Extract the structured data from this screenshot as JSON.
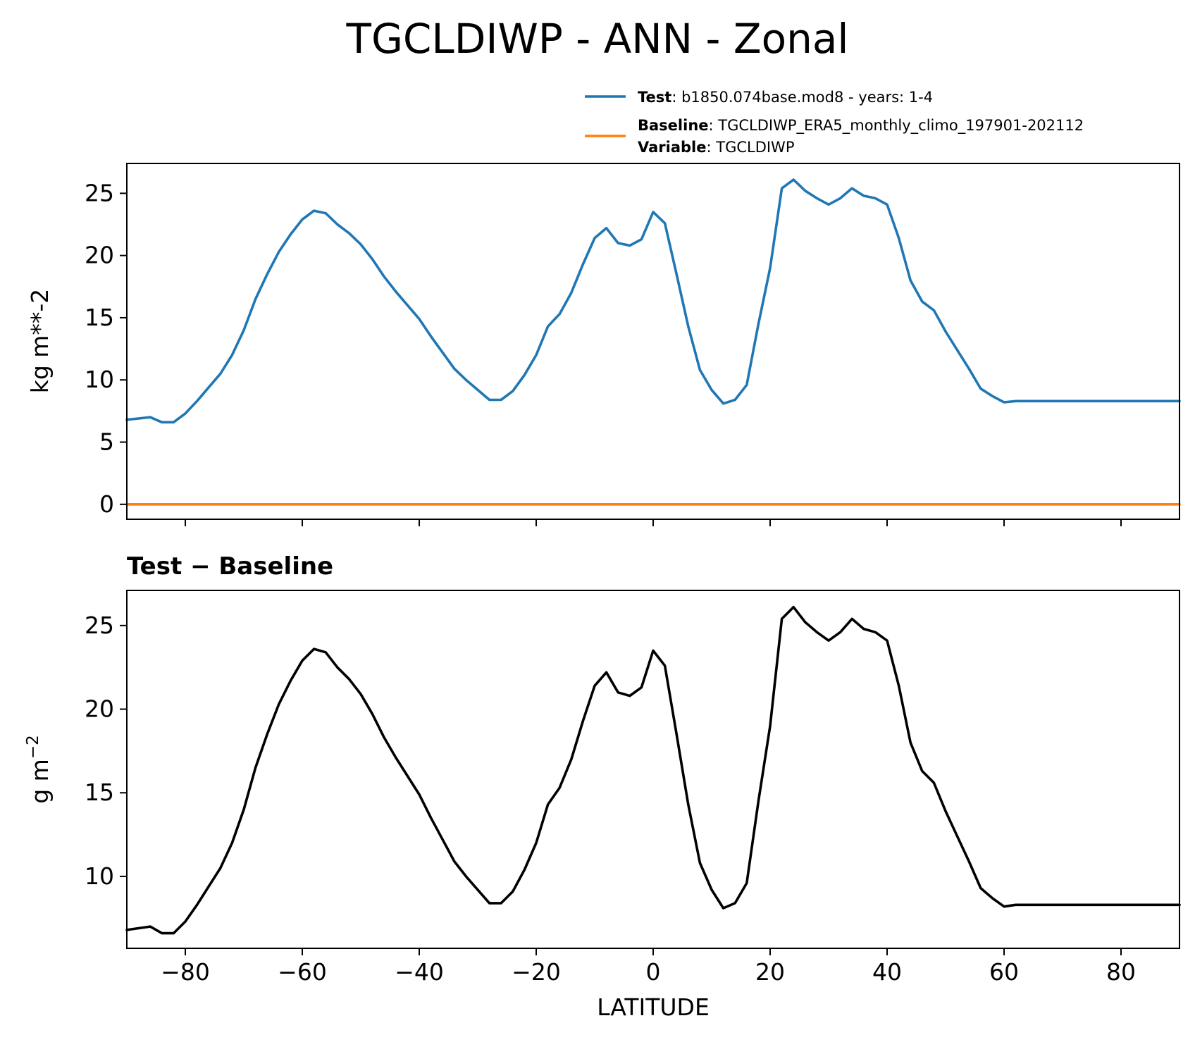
{
  "chart_data": [
    {
      "type": "line",
      "title": "TGCLDIWP - ANN - Zonal",
      "xlabel": "",
      "ylabel": "kg m**-2",
      "xlim": [
        -90,
        90
      ],
      "ylim": [
        -1.2,
        27.4
      ],
      "yticks": [
        0,
        5,
        10,
        15,
        20,
        25
      ],
      "xticks": [
        -80,
        -60,
        -40,
        -20,
        0,
        20,
        40,
        60,
        80
      ],
      "x_tick_labels_shown": false,
      "grid": false,
      "legend": {
        "position": "top-right, above plot",
        "entries": [
          {
            "series": "test",
            "lines": [
              {
                "bold": "Test",
                "text": ": b1850.074base.mod8 - years: 1-4"
              }
            ]
          },
          {
            "series": "baseline",
            "lines": [
              {
                "bold": "Baseline",
                "text": ": TGCLDIWP_ERA5_monthly_climo_197901-202112"
              },
              {
                "bold": "Variable",
                "text": ": TGCLDIWP"
              }
            ]
          }
        ]
      },
      "series": [
        {
          "id": "test",
          "color": "#1f77b4",
          "x": [
            -90,
            -88,
            -86,
            -84,
            -82,
            -80,
            -78,
            -76,
            -74,
            -72,
            -70,
            -68,
            -66,
            -64,
            -62,
            -60,
            -58,
            -56,
            -54,
            -52,
            -50,
            -48,
            -46,
            -44,
            -42,
            -40,
            -38,
            -36,
            -34,
            -32,
            -30,
            -28,
            -26,
            -24,
            -22,
            -20,
            -18,
            -16,
            -14,
            -12,
            -10,
            -8,
            -6,
            -4,
            -2,
            0,
            2,
            4,
            6,
            8,
            10,
            12,
            14,
            16,
            18,
            20,
            22,
            24,
            26,
            28,
            30,
            32,
            34,
            36,
            38,
            40,
            42,
            44,
            46,
            48,
            50,
            52,
            54,
            56,
            58,
            60,
            62,
            64,
            66,
            68,
            70,
            72,
            74,
            76,
            78,
            80,
            82,
            84,
            86,
            88,
            90
          ],
          "y": [
            6.8,
            6.9,
            7.0,
            6.6,
            6.6,
            7.3,
            8.3,
            9.4,
            10.5,
            12.0,
            14.0,
            16.5,
            18.5,
            20.3,
            21.7,
            22.9,
            23.6,
            23.4,
            22.5,
            21.8,
            20.9,
            19.7,
            18.3,
            17.1,
            16.0,
            14.9,
            13.5,
            12.2,
            10.9,
            10.0,
            9.2,
            8.4,
            8.4,
            9.1,
            10.4,
            12.0,
            14.3,
            15.3,
            17.0,
            19.3,
            21.4,
            22.2,
            21.0,
            20.8,
            21.3,
            23.5,
            22.6,
            18.5,
            14.3,
            10.8,
            9.2,
            8.1,
            8.4,
            9.6,
            14.5,
            19.0,
            25.4,
            26.1,
            25.2,
            24.6,
            24.1,
            24.6,
            25.4,
            24.8,
            24.6,
            24.1,
            21.4,
            18.0,
            16.3,
            15.6,
            13.9,
            12.4,
            10.9,
            9.3,
            8.7,
            8.2,
            8.3,
            8.3,
            8.3,
            8.3,
            8.3,
            8.3,
            8.3,
            8.3,
            8.3,
            8.3,
            8.3,
            8.3,
            8.3,
            8.3,
            8.3
          ]
        },
        {
          "id": "baseline",
          "color": "#ff7f0e",
          "x": [
            -90,
            90
          ],
          "y": [
            0.0,
            0.0
          ]
        }
      ]
    },
    {
      "type": "line",
      "title": "Test − Baseline",
      "xlabel": "LATITUDE",
      "ylabel": "g m⁻²",
      "xlim": [
        -90,
        90
      ],
      "ylim": [
        5.7,
        27.1
      ],
      "yticks": [
        10,
        15,
        20,
        25
      ],
      "xticks": [
        -80,
        -60,
        -40,
        -20,
        0,
        20,
        40,
        60,
        80
      ],
      "x_tick_labels": [
        "−80",
        "−60",
        "−40",
        "−20",
        "0",
        "20",
        "40",
        "60",
        "80"
      ],
      "grid": false,
      "series": [
        {
          "id": "difference",
          "color": "#000000",
          "x_from": "test",
          "y_from": "test"
        }
      ]
    }
  ]
}
